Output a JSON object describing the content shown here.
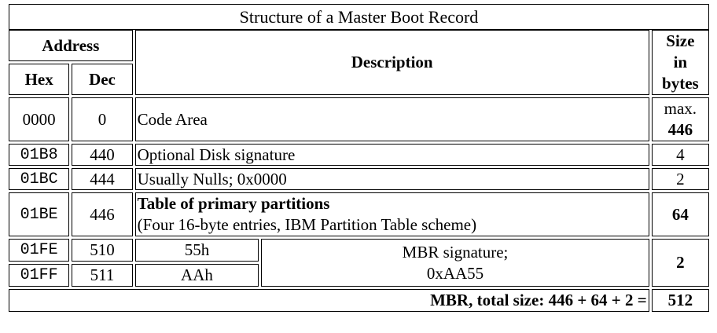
{
  "caption": "Structure of a Master Boot Record",
  "headers": {
    "address": "Address",
    "description": "Description",
    "size_line1": "Size",
    "size_line2": "in",
    "size_line3": "bytes",
    "hex": "Hex",
    "dec": "Dec"
  },
  "rows": [
    {
      "hex": "0000",
      "dec": "0",
      "description": "Code Area",
      "size_prefix": "max.",
      "size": "446"
    },
    {
      "hex": "01B8",
      "dec": "440",
      "description": "Optional Disk signature",
      "size": "4"
    },
    {
      "hex": "01BC",
      "dec": "444",
      "description": "Usually Nulls; 0x0000",
      "size": "2"
    },
    {
      "hex": "01BE",
      "dec": "446",
      "description_title": "Table of primary partitions",
      "description_sub": "(Four 16-byte entries, IBM Partition Table scheme)",
      "size": "64"
    },
    {
      "hex": "01FE",
      "dec": "510",
      "byte_value": "55h"
    },
    {
      "hex": "01FF",
      "dec": "511",
      "byte_value": "AAh"
    }
  ],
  "signature": {
    "line1": "MBR signature;",
    "line2": "0xAA55",
    "size": "2"
  },
  "total": {
    "label": "MBR, total size: 446 + 64 + 2 =",
    "value": "512"
  }
}
